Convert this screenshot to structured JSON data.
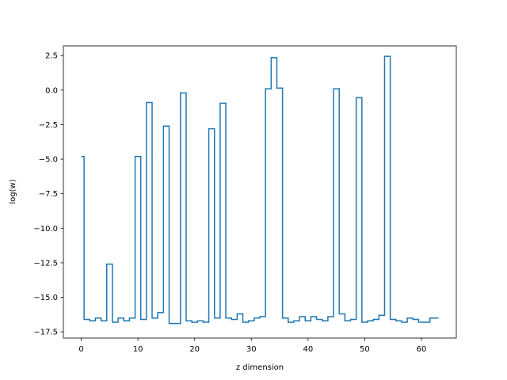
{
  "chart_data": {
    "type": "line",
    "drawstyle": "steps-mid",
    "title": "",
    "xlabel": "z dimension",
    "ylabel": "log(w)",
    "xlim": [
      -3.15,
      66.15
    ],
    "ylim": [
      -17.95,
      3.2
    ],
    "xticks": [
      0,
      10,
      20,
      30,
      40,
      50,
      60
    ],
    "xtick_labels": [
      "0",
      "10",
      "20",
      "30",
      "40",
      "50",
      "60"
    ],
    "yticks": [
      -17.5,
      -15.0,
      -12.5,
      -10.0,
      -7.5,
      -5.0,
      -2.5,
      0.0,
      2.5
    ],
    "ytick_labels": [
      "−17.5",
      "−15.0",
      "−12.5",
      "−10.0",
      "−7.5",
      "−5.0",
      "−2.5",
      "0.0",
      "2.5"
    ],
    "grid": false,
    "legend": false,
    "series": [
      {
        "color": "#1f77b4",
        "x": [
          0,
          1,
          2,
          3,
          4,
          5,
          6,
          7,
          8,
          9,
          10,
          11,
          12,
          13,
          14,
          15,
          16,
          17,
          18,
          19,
          20,
          21,
          22,
          23,
          24,
          25,
          26,
          27,
          28,
          29,
          30,
          31,
          32,
          33,
          34,
          35,
          36,
          37,
          38,
          39,
          40,
          41,
          42,
          43,
          44,
          45,
          46,
          47,
          48,
          49,
          50,
          51,
          52,
          53,
          54,
          55,
          56,
          57,
          58,
          59,
          60,
          61,
          62,
          63
        ],
        "values": [
          -4.8,
          -16.6,
          -16.7,
          -16.5,
          -16.7,
          -12.6,
          -16.8,
          -16.5,
          -16.7,
          -16.5,
          -4.8,
          -16.6,
          -0.9,
          -16.5,
          -16.1,
          -2.6,
          -16.9,
          -16.9,
          -0.2,
          -16.7,
          -16.8,
          -16.7,
          -16.8,
          -2.8,
          -16.5,
          -0.95,
          -16.5,
          -16.6,
          -16.2,
          -16.8,
          -16.7,
          -16.5,
          -16.4,
          0.1,
          2.35,
          0.15,
          -16.5,
          -16.8,
          -16.7,
          -16.4,
          -16.7,
          -16.4,
          -16.6,
          -16.7,
          -16.4,
          0.1,
          -16.2,
          -16.7,
          -16.6,
          -0.55,
          -16.8,
          -16.7,
          -16.6,
          -16.3,
          2.45,
          -16.6,
          -16.7,
          -16.8,
          -16.5,
          -16.6,
          -16.8,
          -16.8,
          -16.5,
          -16.5
        ]
      }
    ]
  }
}
